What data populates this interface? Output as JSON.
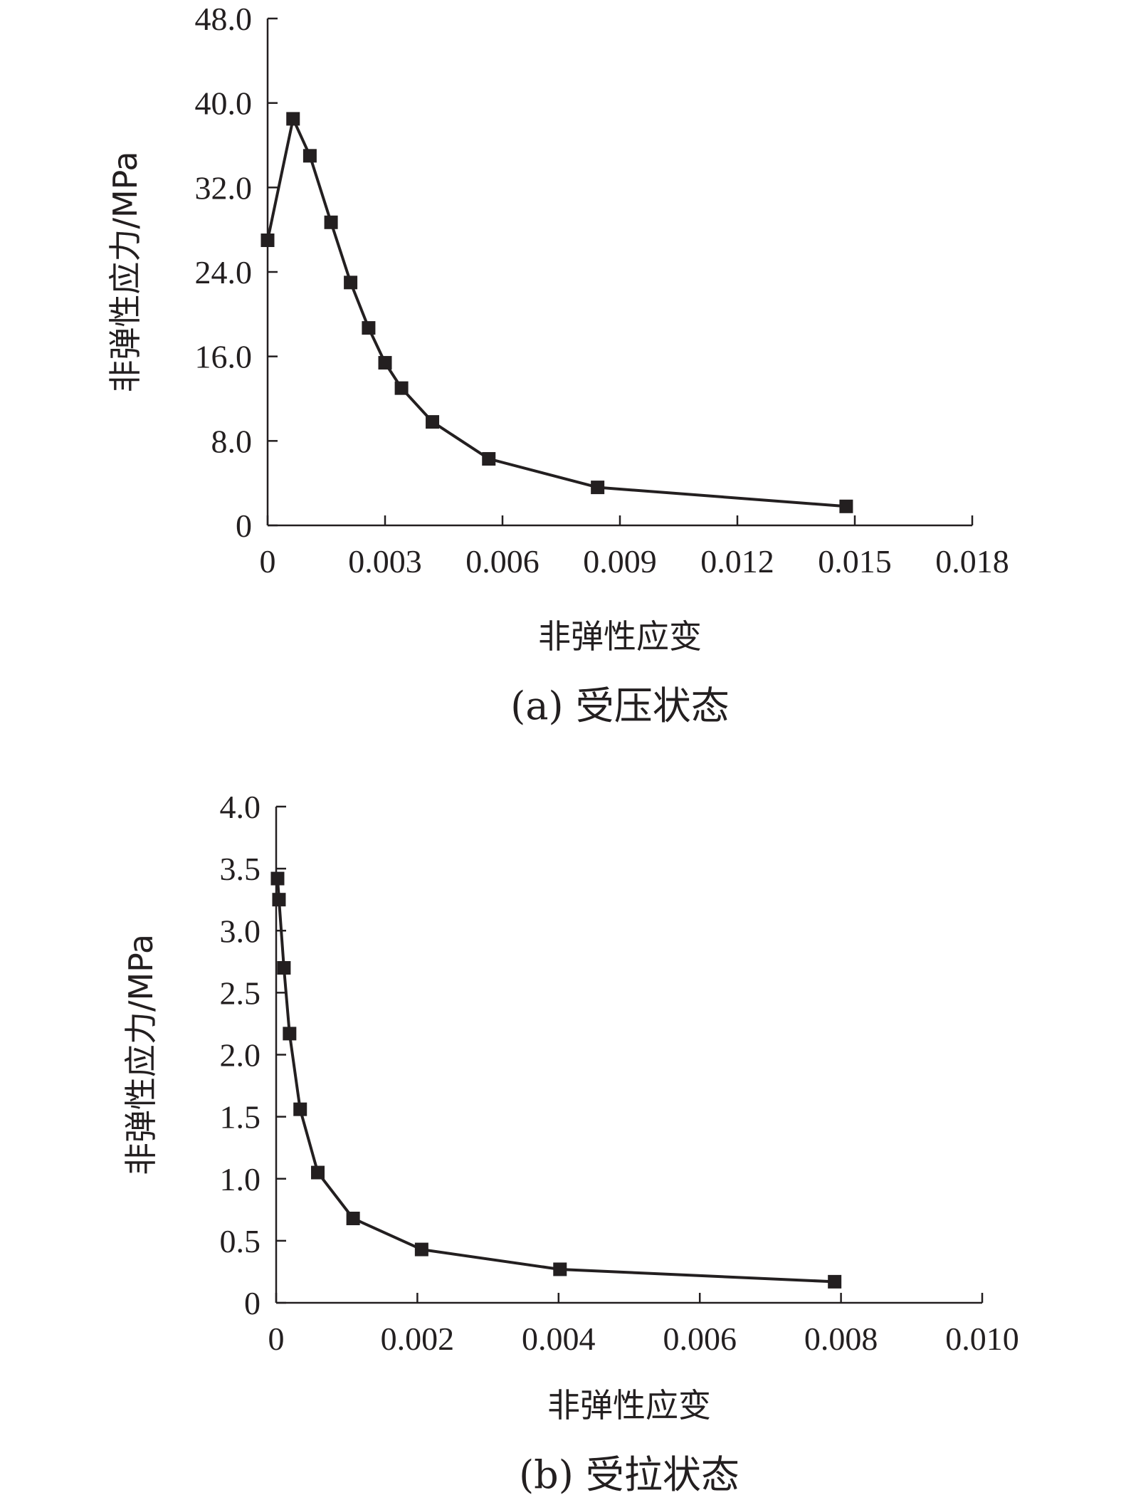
{
  "chart_data": [
    {
      "type": "line",
      "caption": "(a) 受压状态",
      "xlabel": "非弹性应变",
      "ylabel": "非弹性应力/MPa",
      "xlim": [
        0,
        0.018
      ],
      "ylim": [
        0,
        48
      ],
      "xticks": [
        0,
        0.003,
        0.006,
        0.009,
        0.012,
        0.015,
        0.018
      ],
      "xtick_labels": [
        "0",
        "0.003",
        "0.006",
        "0.009",
        "0.012",
        "0.015",
        "0.018"
      ],
      "yticks": [
        0,
        8,
        16,
        24,
        32,
        40,
        48
      ],
      "ytick_labels": [
        "0",
        "8.0",
        "16.0",
        "24.0",
        "32.0",
        "40.0",
        "48.0"
      ],
      "legend": "none",
      "grid": false,
      "series": [
        {
          "marker": "square",
          "color": "#231f20",
          "x": [
            0,
            0.00065,
            0.00108,
            0.00162,
            0.00212,
            0.00258,
            0.003,
            0.00342,
            0.00421,
            0.00565,
            0.00843,
            0.01478
          ],
          "y": [
            27.0,
            38.5,
            35.0,
            28.7,
            23.0,
            18.7,
            15.4,
            13.0,
            9.8,
            6.3,
            3.6,
            1.8
          ]
        }
      ]
    },
    {
      "type": "line",
      "caption": "(b) 受拉状态",
      "xlabel": "非弹性应变",
      "ylabel": "非弹性应力/MPa",
      "xlim": [
        0,
        0.01
      ],
      "ylim": [
        0,
        4
      ],
      "xticks": [
        0,
        0.002,
        0.004,
        0.006,
        0.008,
        0.01
      ],
      "xtick_labels": [
        "0",
        "0.002",
        "0.004",
        "0.006",
        "0.008",
        "0.010"
      ],
      "yticks": [
        0,
        0.5,
        1,
        1.5,
        2,
        2.5,
        3,
        3.5,
        4
      ],
      "ytick_labels": [
        "0",
        "0.5",
        "1.0",
        "1.5",
        "2.0",
        "2.5",
        "3.0",
        "3.5",
        "4.0"
      ],
      "legend": "none",
      "grid": false,
      "series": [
        {
          "marker": "square",
          "color": "#231f20",
          "x": [
            2e-05,
            4e-05,
            0.00011,
            0.00019,
            0.00034,
            0.00059,
            0.00109,
            0.00206,
            0.00402,
            0.00791
          ],
          "y": [
            3.42,
            3.25,
            2.7,
            2.17,
            1.56,
            1.05,
            0.68,
            0.43,
            0.27,
            0.17
          ]
        }
      ]
    }
  ]
}
